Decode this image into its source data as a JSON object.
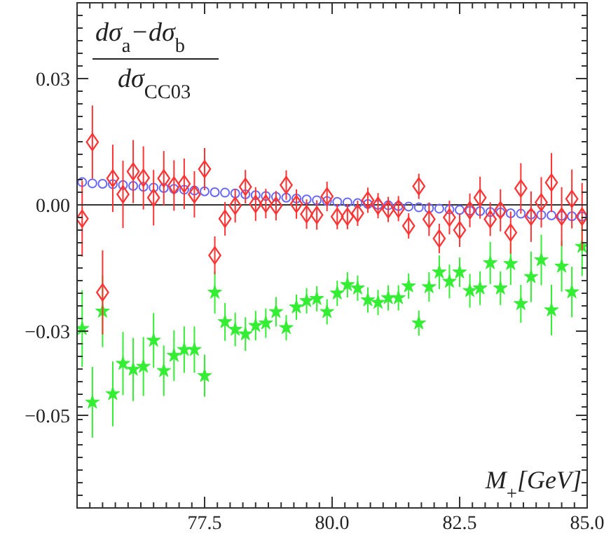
{
  "chart_data": {
    "type": "scatter",
    "annotations": [
      "dσ$_{a}$−dσ$_{b}$",
      "dσ$_{CC03}$"
    ],
    "xlabel": "M$_{+}$[GeV]",
    "x": [
      75.1,
      75.3,
      75.5,
      75.7,
      75.9,
      76.1,
      76.3,
      76.5,
      76.7,
      76.9,
      77.1,
      77.3,
      77.5,
      77.7,
      77.9,
      78.1,
      78.3,
      78.5,
      78.7,
      78.9,
      79.1,
      79.3,
      79.5,
      79.7,
      79.9,
      80.1,
      80.3,
      80.5,
      80.7,
      80.9,
      81.1,
      81.3,
      81.5,
      81.7,
      81.9,
      82.1,
      82.3,
      82.5,
      82.7,
      82.9,
      83.1,
      83.3,
      83.5,
      83.7,
      83.9,
      84.1,
      84.3,
      84.5,
      84.7,
      84.9
    ],
    "xlim": [
      75,
      85
    ],
    "ylim": [
      -0.072,
      0.048
    ],
    "xticks": [
      {
        "value": 75.25,
        "label": null
      },
      {
        "value": 75.5,
        "label": null
      },
      {
        "value": 75.75,
        "label": null
      },
      {
        "value": 76,
        "label": null
      },
      {
        "value": 76.25,
        "label": null
      },
      {
        "value": 76.5,
        "label": null
      },
      {
        "value": 76.75,
        "label": null
      },
      {
        "value": 77,
        "label": null
      },
      {
        "value": 77.25,
        "label": null
      },
      {
        "value": 77.5,
        "label": "77.5"
      },
      {
        "value": 77.75,
        "label": null
      },
      {
        "value": 78,
        "label": null
      },
      {
        "value": 78.25,
        "label": null
      },
      {
        "value": 78.5,
        "label": null
      },
      {
        "value": 78.75,
        "label": null
      },
      {
        "value": 79,
        "label": null
      },
      {
        "value": 79.25,
        "label": null
      },
      {
        "value": 79.5,
        "label": null
      },
      {
        "value": 79.75,
        "label": null
      },
      {
        "value": 80,
        "label": "80.0"
      },
      {
        "value": 80.25,
        "label": null
      },
      {
        "value": 80.5,
        "label": null
      },
      {
        "value": 80.75,
        "label": null
      },
      {
        "value": 81,
        "label": null
      },
      {
        "value": 81.25,
        "label": null
      },
      {
        "value": 81.5,
        "label": null
      },
      {
        "value": 81.75,
        "label": null
      },
      {
        "value": 82,
        "label": null
      },
      {
        "value": 82.25,
        "label": null
      },
      {
        "value": 82.5,
        "label": "82.5"
      },
      {
        "value": 82.75,
        "label": null
      },
      {
        "value": 83,
        "label": null
      },
      {
        "value": 83.25,
        "label": null
      },
      {
        "value": 83.5,
        "label": null
      },
      {
        "value": 83.75,
        "label": null
      },
      {
        "value": 84,
        "label": null
      },
      {
        "value": 84.25,
        "label": null
      },
      {
        "value": 84.5,
        "label": null
      },
      {
        "value": 84.75,
        "label": null
      },
      {
        "value": 85,
        "label": "85.0"
      }
    ],
    "yticks": [
      {
        "value": -0.069,
        "label": null
      },
      {
        "value": -0.066,
        "label": null
      },
      {
        "value": -0.063,
        "label": null
      },
      {
        "value": -0.06,
        "label": null
      },
      {
        "value": -0.057,
        "label": null
      },
      {
        "value": -0.054,
        "label": null
      },
      {
        "value": -0.051,
        "label": null
      },
      {
        "value": -0.05,
        "label": "−0.05"
      },
      {
        "value": -0.048,
        "label": null
      },
      {
        "value": -0.045,
        "label": null
      },
      {
        "value": -0.042,
        "label": null
      },
      {
        "value": -0.039,
        "label": null
      },
      {
        "value": -0.036,
        "label": null
      },
      {
        "value": -0.033,
        "label": null
      },
      {
        "value": -0.03,
        "label": "−0.03"
      },
      {
        "value": -0.027,
        "label": null
      },
      {
        "value": -0.024,
        "label": null
      },
      {
        "value": -0.021,
        "label": null
      },
      {
        "value": -0.018,
        "label": null
      },
      {
        "value": -0.015,
        "label": null
      },
      {
        "value": -0.012,
        "label": null
      },
      {
        "value": -0.009,
        "label": null
      },
      {
        "value": -0.006,
        "label": null
      },
      {
        "value": -0.003,
        "label": null
      },
      {
        "value": 0,
        "label": "0.00"
      },
      {
        "value": 0.003,
        "label": null
      },
      {
        "value": 0.006,
        "label": null
      },
      {
        "value": 0.009,
        "label": null
      },
      {
        "value": 0.012,
        "label": null
      },
      {
        "value": 0.015,
        "label": null
      },
      {
        "value": 0.018,
        "label": null
      },
      {
        "value": 0.021,
        "label": null
      },
      {
        "value": 0.024,
        "label": null
      },
      {
        "value": 0.027,
        "label": null
      },
      {
        "value": 0.03,
        "label": "0.03"
      },
      {
        "value": 0.033,
        "label": null
      },
      {
        "value": 0.036,
        "label": null
      },
      {
        "value": 0.039,
        "label": null
      },
      {
        "value": 0.042,
        "label": null
      },
      {
        "value": 0.045,
        "label": null
      }
    ],
    "ref_lines": [
      {
        "axis": "y",
        "value": 0,
        "color": "#333333"
      }
    ],
    "grid": false,
    "series": [
      {
        "color": "#6666ff",
        "marker": "circle",
        "values": [
          0.0054,
          0.0051,
          0.005,
          0.0049,
          0.0047,
          0.0045,
          0.0043,
          0.0041,
          0.004,
          0.0038,
          0.0036,
          0.0034,
          0.0032,
          0.003,
          0.0029,
          0.0027,
          0.0025,
          0.0023,
          0.0021,
          0.0019,
          0.0017,
          0.0015,
          0.0013,
          0.0011,
          0.0009,
          0.0007,
          0.0006,
          0.0004,
          0.0002,
          0,
          -0.0001,
          -0.0003,
          -0.0004,
          -0.0006,
          -0.0008,
          -0.0009,
          -0.0011,
          -0.0012,
          -0.0014,
          -0.0015,
          -0.0017,
          -0.0018,
          -0.002,
          -0.0021,
          -0.0023,
          -0.0024,
          -0.0025,
          -0.0026,
          -0.0027,
          -0.0028
        ]
      },
      {
        "color": "#33ee33",
        "marker": "star",
        "values": [
          -0.0294,
          -0.0469,
          -0.0253,
          -0.0449,
          -0.0377,
          -0.0391,
          -0.0384,
          -0.0322,
          -0.0394,
          -0.0358,
          -0.0344,
          -0.0344,
          -0.0406,
          -0.0208,
          -0.0278,
          -0.0296,
          -0.0307,
          -0.0287,
          -0.0281,
          -0.0254,
          -0.0292,
          -0.0243,
          -0.0228,
          -0.0223,
          -0.0254,
          -0.021,
          -0.019,
          -0.0198,
          -0.0226,
          -0.0232,
          -0.0221,
          -0.0221,
          -0.0193,
          -0.0281,
          -0.0195,
          -0.016,
          -0.0182,
          -0.016,
          -0.0204,
          -0.0198,
          -0.0138,
          -0.0198,
          -0.014,
          -0.0235,
          -0.0171,
          -0.0131,
          -0.025,
          -0.0146,
          -0.0207,
          -0.0099
        ],
        "errors": [
          0.0091,
          0.0084,
          0.0085,
          0.0077,
          0.0075,
          0.0075,
          0.007,
          0.0065,
          0.006,
          0.006,
          0.0055,
          0.0055,
          0.005,
          0.005,
          0.0045,
          0.004,
          0.004,
          0.0035,
          0.0035,
          0.0035,
          0.003,
          0.003,
          0.003,
          0.003,
          0.003,
          0.003,
          0.003,
          0.003,
          0.003,
          0.003,
          0.003,
          0.003,
          0.003,
          0.003,
          0.0035,
          0.004,
          0.004,
          0.0035,
          0.004,
          0.004,
          0.005,
          0.004,
          0.005,
          0.0045,
          0.006,
          0.006,
          0.006,
          0.006,
          0.006,
          0.007
        ]
      },
      {
        "color": "#ff3333",
        "marker": "diamond",
        "values": [
          -0.0033,
          0.0149,
          -0.0208,
          0.0063,
          0.0025,
          0.0079,
          0.0064,
          0.0017,
          0.0063,
          0.0046,
          0.005,
          0.0025,
          0.0085,
          -0.012,
          -0.0033,
          -0.0002,
          0.0043,
          0.0002,
          0.0003,
          -0.0002,
          0.0047,
          0.0002,
          -0.0022,
          -0.0024,
          0.002,
          -0.0028,
          -0.0028,
          -0.002,
          0.0011,
          -0.0002,
          -0.0011,
          -0.0009,
          -0.005,
          0.0044,
          -0.0034,
          -0.008,
          -0.003,
          -0.006,
          -0.0013,
          0.0017,
          -0.0034,
          -0.0013,
          -0.0066,
          0.0039,
          -0.0028,
          0.0006,
          0.0053,
          -0.0028,
          0.0014,
          -0.0028
        ],
        "errors": [
          0.009,
          0.0087,
          0.01,
          0.008,
          0.008,
          0.0075,
          0.0075,
          0.0066,
          0.0065,
          0.006,
          0.006,
          0.0055,
          0.005,
          0.0045,
          0.004,
          0.004,
          0.004,
          0.004,
          0.0035,
          0.0035,
          0.0035,
          0.0035,
          0.0035,
          0.0035,
          0.0035,
          0.003,
          0.003,
          0.003,
          0.003,
          0.003,
          0.003,
          0.003,
          0.003,
          0.003,
          0.004,
          0.0035,
          0.004,
          0.004,
          0.004,
          0.005,
          0.004,
          0.005,
          0.005,
          0.006,
          0.006,
          0.006,
          0.007,
          0.007,
          0.007,
          0.008
        ]
      }
    ]
  }
}
